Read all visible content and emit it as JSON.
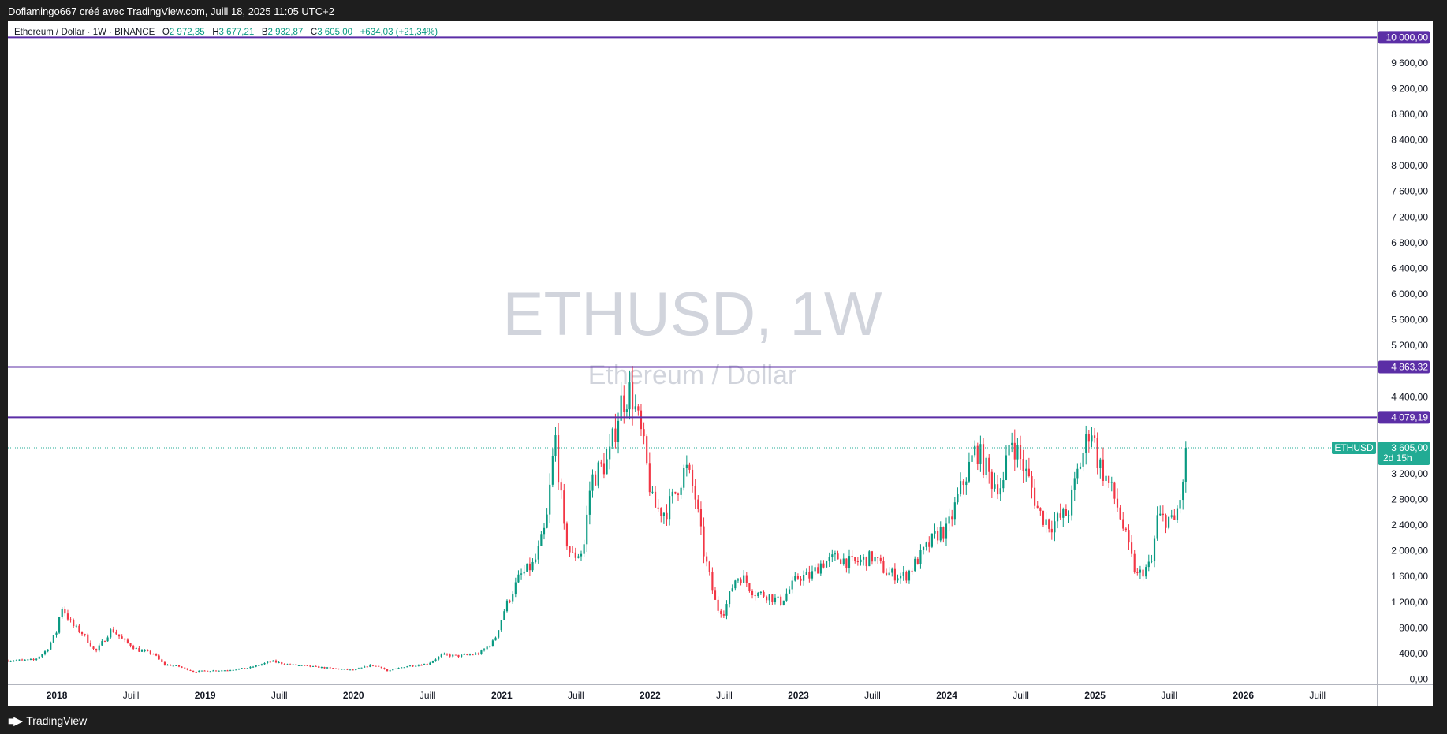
{
  "header": {
    "caption": "Doflamingo667 créé avec TradingView.com, Juill 18, 2025 11:05 UTC+2"
  },
  "footer": {
    "brand": "TradingView"
  },
  "legend": {
    "symbol": "Ethereum / Dollar · 1W · BINANCE",
    "o_label": "O",
    "o": "2 972,35",
    "h_label": "H",
    "h": "3 677,21",
    "b_label": "B",
    "b": "2 932,87",
    "c_label": "C",
    "c": "3 605,00",
    "change": "+634,03 (+21,34%)"
  },
  "watermark": {
    "title": "ETHUSD, 1W",
    "subtitle": "Ethereum / Dollar"
  },
  "colors": {
    "up": "#089981",
    "down": "#f23645",
    "hline": "#5b2ea6",
    "price": "#22ab94"
  },
  "chart_data": {
    "type": "candlestick",
    "x_labels": [
      {
        "t": 2018.0,
        "label": "2018",
        "bold": true
      },
      {
        "t": 2018.5,
        "label": "Juill"
      },
      {
        "t": 2019.0,
        "label": "2019",
        "bold": true
      },
      {
        "t": 2019.5,
        "label": "Juill"
      },
      {
        "t": 2020.0,
        "label": "2020",
        "bold": true
      },
      {
        "t": 2020.5,
        "label": "Juill"
      },
      {
        "t": 2021.0,
        "label": "2021",
        "bold": true
      },
      {
        "t": 2021.5,
        "label": "Juill"
      },
      {
        "t": 2022.0,
        "label": "2022",
        "bold": true
      },
      {
        "t": 2022.5,
        "label": "Juill"
      },
      {
        "t": 2023.0,
        "label": "2023",
        "bold": true
      },
      {
        "t": 2023.5,
        "label": "Juill"
      },
      {
        "t": 2024.0,
        "label": "2024",
        "bold": true
      },
      {
        "t": 2024.5,
        "label": "Juill"
      },
      {
        "t": 2025.0,
        "label": "2025",
        "bold": true
      },
      {
        "t": 2025.5,
        "label": "Juill"
      },
      {
        "t": 2026.0,
        "label": "2026",
        "bold": true
      },
      {
        "t": 2026.5,
        "label": "Juill"
      }
    ],
    "y_ticks": [
      {
        "v": 0,
        "label": "0,00"
      },
      {
        "v": 400,
        "label": "400,00"
      },
      {
        "v": 800,
        "label": "800,00"
      },
      {
        "v": 1200,
        "label": "1 200,00"
      },
      {
        "v": 1600,
        "label": "1 600,00"
      },
      {
        "v": 2000,
        "label": "2 000,00"
      },
      {
        "v": 2400,
        "label": "2 400,00"
      },
      {
        "v": 2800,
        "label": "2 800,00"
      },
      {
        "v": 3200,
        "label": "3 200,00"
      },
      {
        "v": 4400,
        "label": "4 400,00"
      },
      {
        "v": 5200,
        "label": "5 200,00"
      },
      {
        "v": 5600,
        "label": "5 600,00"
      },
      {
        "v": 6000,
        "label": "6 000,00"
      },
      {
        "v": 6400,
        "label": "6 400,00"
      },
      {
        "v": 6800,
        "label": "6 800,00"
      },
      {
        "v": 7200,
        "label": "7 200,00"
      },
      {
        "v": 7600,
        "label": "7 600,00"
      },
      {
        "v": 8000,
        "label": "8 000,00"
      },
      {
        "v": 8400,
        "label": "8 400,00"
      },
      {
        "v": 8800,
        "label": "8 800,00"
      },
      {
        "v": 9200,
        "label": "9 200,00"
      },
      {
        "v": 9600,
        "label": "9 600,00"
      }
    ],
    "ylim": [
      -80,
      10250
    ],
    "xlim": [
      2017.67,
      2026.9
    ],
    "hlines": [
      {
        "v": 10000,
        "label": "10 000,00"
      },
      {
        "v": 4863.32,
        "label": "4 863,32"
      },
      {
        "v": 4079.19,
        "label": "4 079,19"
      }
    ],
    "last_price": {
      "v": 3605,
      "label": "3 605,00",
      "symbol": "ETHUSD",
      "countdown": "2d 15h"
    },
    "price_anchors": [
      [
        2017.67,
        290
      ],
      [
        2017.85,
        300
      ],
      [
        2017.93,
        450
      ],
      [
        2018.0,
        750
      ],
      [
        2018.03,
        1150
      ],
      [
        2018.1,
        850
      ],
      [
        2018.18,
        700
      ],
      [
        2018.26,
        420
      ],
      [
        2018.33,
        650
      ],
      [
        2018.37,
        780
      ],
      [
        2018.45,
        600
      ],
      [
        2018.55,
        450
      ],
      [
        2018.65,
        400
      ],
      [
        2018.72,
        230
      ],
      [
        2018.82,
        200
      ],
      [
        2018.92,
        120
      ],
      [
        2019.0,
        130
      ],
      [
        2019.15,
        140
      ],
      [
        2019.3,
        180
      ],
      [
        2019.45,
        280
      ],
      [
        2019.55,
        230
      ],
      [
        2019.7,
        200
      ],
      [
        2019.85,
        170
      ],
      [
        2020.0,
        140
      ],
      [
        2020.12,
        220
      ],
      [
        2020.2,
        180
      ],
      [
        2020.22,
        120
      ],
      [
        2020.35,
        200
      ],
      [
        2020.5,
        240
      ],
      [
        2020.6,
        380
      ],
      [
        2020.7,
        360
      ],
      [
        2020.85,
        400
      ],
      [
        2020.95,
        600
      ],
      [
        2021.02,
        1100
      ],
      [
        2021.12,
        1600
      ],
      [
        2021.22,
        1800
      ],
      [
        2021.3,
        2400
      ],
      [
        2021.36,
        3800
      ],
      [
        2021.42,
        2300
      ],
      [
        2021.47,
        1900
      ],
      [
        2021.55,
        2000
      ],
      [
        2021.6,
        3100
      ],
      [
        2021.67,
        3300
      ],
      [
        2021.72,
        3400
      ],
      [
        2021.8,
        4300
      ],
      [
        2021.87,
        4500
      ],
      [
        2021.95,
        3700
      ],
      [
        2022.02,
        2700
      ],
      [
        2022.1,
        2600
      ],
      [
        2022.15,
        2800
      ],
      [
        2022.24,
        3300
      ],
      [
        2022.3,
        2900
      ],
      [
        2022.36,
        2000
      ],
      [
        2022.45,
        1100
      ],
      [
        2022.5,
        1050
      ],
      [
        2022.57,
        1550
      ],
      [
        2022.62,
        1600
      ],
      [
        2022.7,
        1350
      ],
      [
        2022.8,
        1300
      ],
      [
        2022.88,
        1200
      ],
      [
        2023.0,
        1600
      ],
      [
        2023.08,
        1600
      ],
      [
        2023.15,
        1800
      ],
      [
        2023.27,
        1900
      ],
      [
        2023.36,
        1800
      ],
      [
        2023.5,
        1900
      ],
      [
        2023.6,
        1650
      ],
      [
        2023.72,
        1600
      ],
      [
        2023.85,
        2000
      ],
      [
        2023.95,
        2300
      ],
      [
        2024.0,
        2300
      ],
      [
        2024.1,
        3000
      ],
      [
        2024.2,
        3600
      ],
      [
        2024.3,
        3100
      ],
      [
        2024.38,
        3000
      ],
      [
        2024.43,
        3800
      ],
      [
        2024.5,
        3400
      ],
      [
        2024.57,
        3000
      ],
      [
        2024.62,
        2600
      ],
      [
        2024.7,
        2400
      ],
      [
        2024.82,
        2600
      ],
      [
        2024.88,
        3200
      ],
      [
        2024.94,
        3700
      ],
      [
        2024.97,
        4000
      ],
      [
        2025.02,
        3400
      ],
      [
        2025.1,
        3000
      ],
      [
        2025.15,
        2700
      ],
      [
        2025.22,
        2100
      ],
      [
        2025.28,
        1600
      ],
      [
        2025.33,
        1700
      ],
      [
        2025.38,
        1800
      ],
      [
        2025.42,
        2500
      ],
      [
        2025.5,
        2500
      ],
      [
        2025.53,
        2400
      ],
      [
        2025.58,
        2900
      ],
      [
        2025.6,
        3000
      ],
      [
        2025.62,
        3605
      ]
    ]
  }
}
